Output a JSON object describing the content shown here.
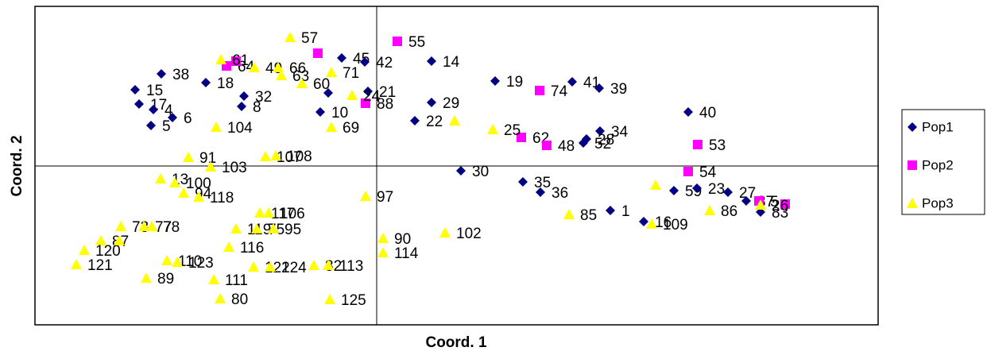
{
  "chart_data": {
    "type": "scatter",
    "x_label": "Coord. 1",
    "y_label": "Coord. 2",
    "xlim": [
      -0.43,
      0.631
    ],
    "ylim": [
      -0.2,
      0.201
    ],
    "legend": "right",
    "series": [
      {
        "name": "Pop1",
        "color": "#000080",
        "marker": "diamond",
        "x": [
          -0.271,
          -0.304,
          -0.299,
          -0.281,
          -0.257,
          -0.284,
          -0.215,
          -0.167,
          -0.17,
          -0.061,
          -0.071,
          -0.044,
          -0.015,
          0.069,
          0.149,
          0.069,
          0.048,
          -0.011,
          0.246,
          0.28,
          0.392,
          0.281,
          0.26,
          0.264,
          0.106,
          0.184,
          0.206,
          0.294,
          0.336,
          0.374,
          0.403,
          0.442,
          0.465,
          0.483
        ],
        "values": [
          0.116,
          0.096,
          0.078,
          0.071,
          0.061,
          0.051,
          0.105,
          0.088,
          0.075,
          0.092,
          0.068,
          0.136,
          0.131,
          0.132,
          0.107,
          0.08,
          0.057,
          0.094,
          0.106,
          0.098,
          0.068,
          0.044,
          0.029,
          0.034,
          -0.006,
          -0.02,
          -0.033,
          -0.056,
          -0.07,
          -0.031,
          -0.028,
          -0.033,
          -0.044,
          -0.058
        ],
        "labels": [
          "38",
          "15",
          "17",
          "4",
          "6",
          "5",
          "18",
          "32",
          "8",
          null,
          "10",
          "45",
          "42",
          "14",
          "19",
          "29",
          "22",
          "21",
          "41",
          "39",
          "40",
          "34",
          "52",
          "28",
          "30",
          "35",
          "36",
          "1",
          "16",
          "59",
          "23",
          "27",
          "37",
          "83"
        ]
      },
      {
        "name": "Pop2",
        "color": "#ff00ff",
        "marker": "square",
        "x": [
          -0.189,
          -0.177,
          -0.074,
          0.026,
          -0.014,
          0.205,
          0.182,
          0.214,
          0.404,
          0.392,
          0.481,
          0.514
        ],
        "values": [
          0.126,
          0.132,
          0.142,
          0.157,
          0.079,
          0.095,
          0.036,
          0.026,
          0.027,
          -0.007,
          -0.044,
          -0.048
        ],
        "labels": [
          "64",
          null,
          null,
          "55",
          "88",
          "74",
          "62",
          "48",
          "53",
          "54",
          "5",
          null
        ]
      },
      {
        "name": "Pop3",
        "color": "#ffff00",
        "marker": "triangle",
        "x": [
          -0.109,
          -0.196,
          -0.154,
          -0.124,
          -0.12,
          -0.094,
          -0.057,
          -0.031,
          -0.057,
          -0.202,
          -0.237,
          -0.14,
          -0.127,
          -0.209,
          -0.272,
          -0.254,
          -0.243,
          -0.224,
          -0.147,
          -0.136,
          -0.014,
          -0.177,
          -0.151,
          -0.13,
          -0.322,
          -0.293,
          -0.283,
          -0.347,
          -0.368,
          -0.324,
          -0.378,
          -0.29,
          -0.264,
          -0.251,
          -0.186,
          -0.155,
          -0.134,
          -0.079,
          -0.061,
          -0.205,
          -0.197,
          -0.059,
          0.008,
          0.008,
          0.086,
          0.098,
          0.146,
          0.242,
          0.351,
          0.346,
          0.419,
          0.483
        ],
        "values": [
          0.162,
          0.134,
          0.124,
          0.124,
          0.114,
          0.104,
          0.118,
          0.089,
          0.049,
          0.049,
          0.011,
          0.012,
          0.013,
          -0.001,
          -0.016,
          -0.021,
          -0.034,
          -0.039,
          -0.059,
          -0.059,
          -0.038,
          -0.079,
          -0.079,
          -0.079,
          -0.076,
          -0.076,
          -0.076,
          -0.094,
          -0.106,
          -0.094,
          -0.124,
          -0.141,
          -0.119,
          -0.121,
          -0.102,
          -0.127,
          -0.127,
          -0.125,
          -0.125,
          -0.143,
          -0.167,
          -0.168,
          -0.091,
          -0.109,
          -0.084,
          0.057,
          0.046,
          -0.061,
          -0.024,
          -0.073,
          -0.056,
          -0.049
        ],
        "labels": [
          "57",
          "61",
          "49",
          "66",
          "63",
          "60",
          "71",
          "24",
          "69",
          "104",
          "91",
          "107",
          "108",
          "103",
          "13",
          "100",
          "94",
          "118",
          "117",
          "106",
          "97",
          "119",
          "75",
          "95",
          "73",
          "77",
          "78",
          "87",
          "120",
          null,
          "121",
          "89",
          "110",
          "123",
          "116",
          "122",
          "124",
          "82",
          "113",
          "111",
          "80",
          "125",
          "90",
          "114",
          "102",
          null,
          "25",
          "85",
          null,
          "109",
          "86",
          "26"
        ]
      }
    ]
  }
}
